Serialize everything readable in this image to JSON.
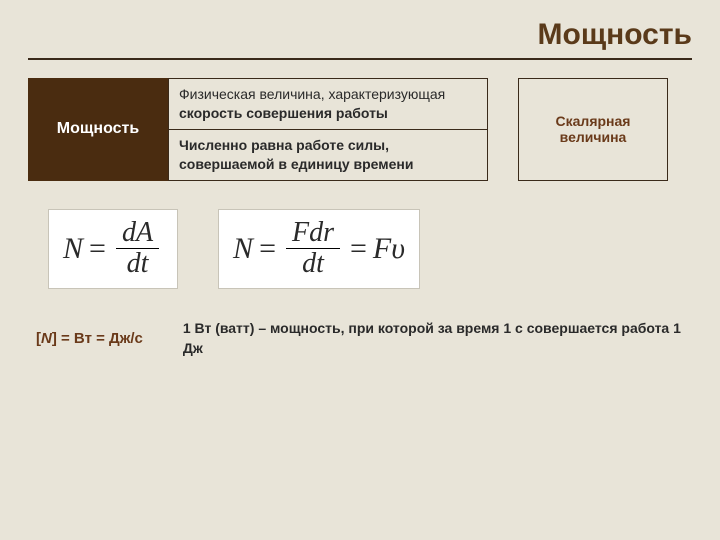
{
  "title": "Мощность",
  "term": "Мощность",
  "def_top_plain": "Физическая величина, характеризующая ",
  "def_top_bold": "скорость совершения работы",
  "def_bottom": "Численно равна работе силы, совершаемой в единицу времени",
  "qualifier_line1": "Скалярная",
  "qualifier_line2": "величина",
  "formula1": {
    "lhs": "N",
    "num": "dA",
    "den": "dt"
  },
  "formula2": {
    "lhs": "N",
    "num": "Fdr",
    "den": "dt",
    "rhs": "Fυ"
  },
  "units_text": "[N] = Вт = Дж/с",
  "footnote": "1 Вт (ватт) – мощность, при которой за время 1 с совершается работа 1 Дж",
  "colors": {
    "background": "#e8e4d8",
    "title_color": "#5a3a1a",
    "rule_color": "#3a2a1a",
    "term_bg": "#4a2c10",
    "term_fg": "#ffffff",
    "accent_text": "#6a3a1a",
    "formula_bg": "#ffffff",
    "formula_border": "#c8c4b8"
  }
}
